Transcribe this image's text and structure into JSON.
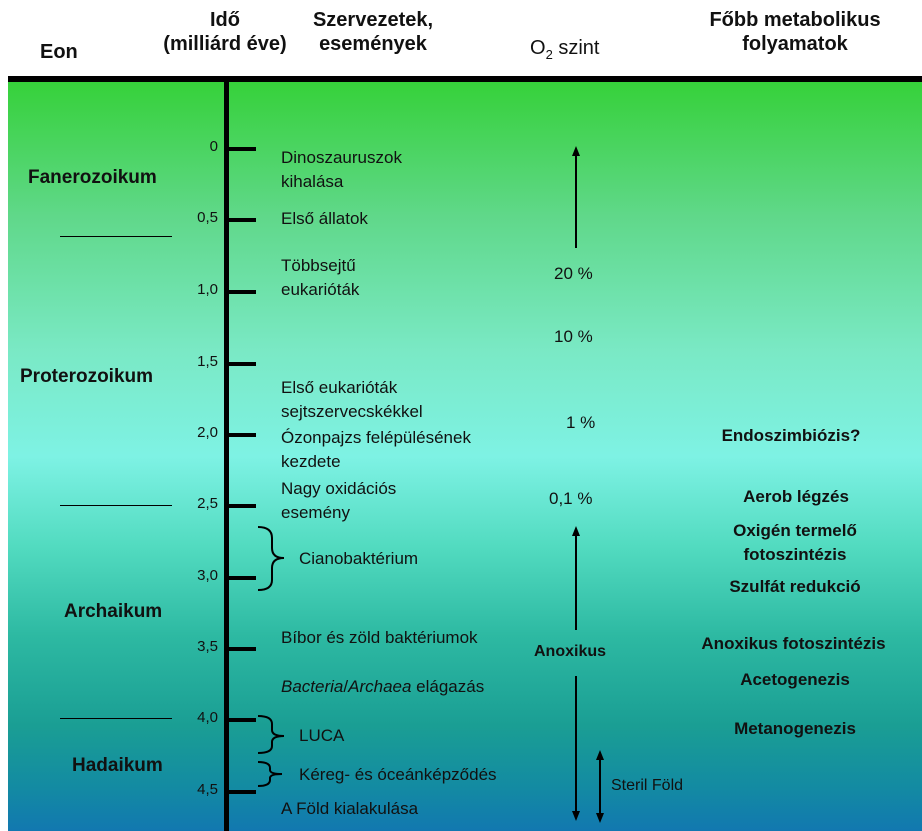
{
  "header": {
    "eon": "Eon",
    "time": [
      "Idő",
      "(milliárd éve)"
    ],
    "organisms": [
      "Szervezetek,",
      "események"
    ],
    "o2": "O",
    "o2_sub": "2",
    "o2_rest": " szint",
    "metabolic": [
      "Főbb metabolikus",
      "folyamatok"
    ]
  },
  "eons": [
    "Fanerozoikum",
    "Proterozoikum",
    "Archaikum",
    "Hadaikum"
  ],
  "ticks": [
    "0",
    "0,5",
    "1,0",
    "1,5",
    "2,0",
    "2,5",
    "3,0",
    "3,5",
    "4,0",
    "4,5"
  ],
  "events": {
    "dino": [
      "Dinoszauruszok",
      "kihalása"
    ],
    "animals": "Első állatok",
    "multicell": [
      "Többsejtű",
      "eukarióták"
    ],
    "eukaryotes": [
      "Első eukarióták",
      "sejtszervecskékkel"
    ],
    "ozone": [
      "Ózonpajzs felépülésének",
      "kezdete"
    ],
    "oxidation": [
      "Nagy oxidációs",
      "esemény"
    ],
    "cyano": "Cianobaktérium",
    "purple": "Bíbor és zöld baktériumok",
    "branch_bacteria": "Bacteria",
    "branch_sep": "/",
    "branch_archaea": "Archaea",
    "branch_rest": " elágazás",
    "luca": "LUCA",
    "crust": "Kéreg- és óceánképződés",
    "earth": "A Föld kialakulása"
  },
  "o2_levels": [
    "20 %",
    "10 %",
    "1 %",
    "0,1 %"
  ],
  "anoxic": "Anoxikus",
  "sterile": "Steril Föld",
  "metabolism": {
    "endo": "Endoszimbiózis?",
    "aerob": "Aerob légzés",
    "oxy": [
      "Oxigén termelő",
      "fotoszintézis"
    ],
    "sulfate": "Szulfát redukció",
    "anox_photo": "Anoxikus fotoszintézis",
    "aceto": "Acetogenezis",
    "metano": "Metanogenezis"
  }
}
